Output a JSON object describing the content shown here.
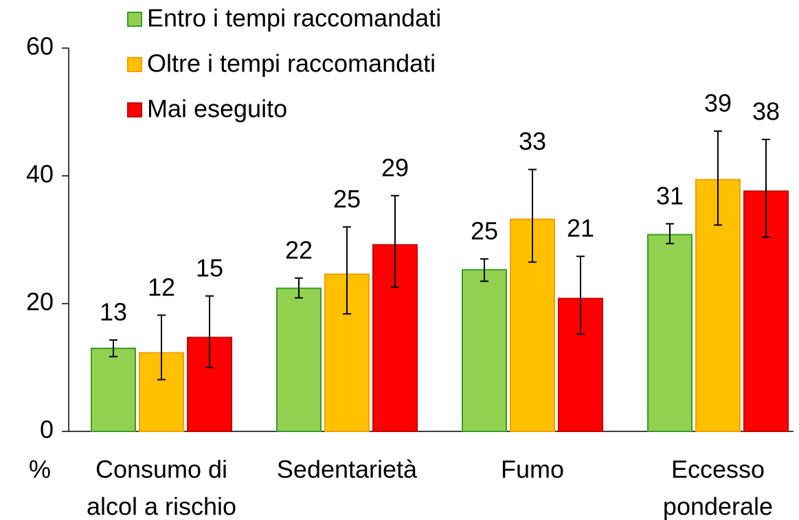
{
  "chart_data": {
    "type": "bar",
    "y_label": "%",
    "categories": [
      [
        "Consumo di",
        "alcol a rischio"
      ],
      [
        "Sedentarietà"
      ],
      [
        "Fumo"
      ],
      [
        "Eccesso",
        "ponderale"
      ]
    ],
    "series": [
      {
        "name": "Entro i tempi raccomandati",
        "color": "#92d050",
        "stroke": "#3c9a2c",
        "values": [
          13.0,
          22.4,
          25.3,
          30.8
        ],
        "value_labels": [
          "13",
          "22",
          "25",
          "31"
        ],
        "ci_low": [
          11.7,
          20.9,
          23.5,
          29.4
        ],
        "ci_high": [
          14.3,
          24.0,
          27.0,
          32.5
        ]
      },
      {
        "name": "Oltre i tempi raccomandati",
        "color": "#ffc000",
        "stroke": "#f0a000",
        "values": [
          12.3,
          24.6,
          33.2,
          39.4
        ],
        "value_labels": [
          "12",
          "25",
          "33",
          "39"
        ],
        "ci_low": [
          8.1,
          18.4,
          26.5,
          32.3
        ],
        "ci_high": [
          18.2,
          32.0,
          41.0,
          47.0
        ]
      },
      {
        "name": "Mai eseguito",
        "color": "#ff0000",
        "stroke": "#c00000",
        "values": [
          14.7,
          29.2,
          20.8,
          37.6
        ],
        "value_labels": [
          "15",
          "29",
          "21",
          "38"
        ],
        "ci_low": [
          10.0,
          22.6,
          15.2,
          30.4
        ],
        "ci_high": [
          21.2,
          36.9,
          27.4,
          45.7
        ]
      }
    ],
    "ylim": [
      0,
      60
    ],
    "yticks": [
      0,
      20,
      40,
      60
    ],
    "grid": false,
    "legend": "top-left"
  }
}
